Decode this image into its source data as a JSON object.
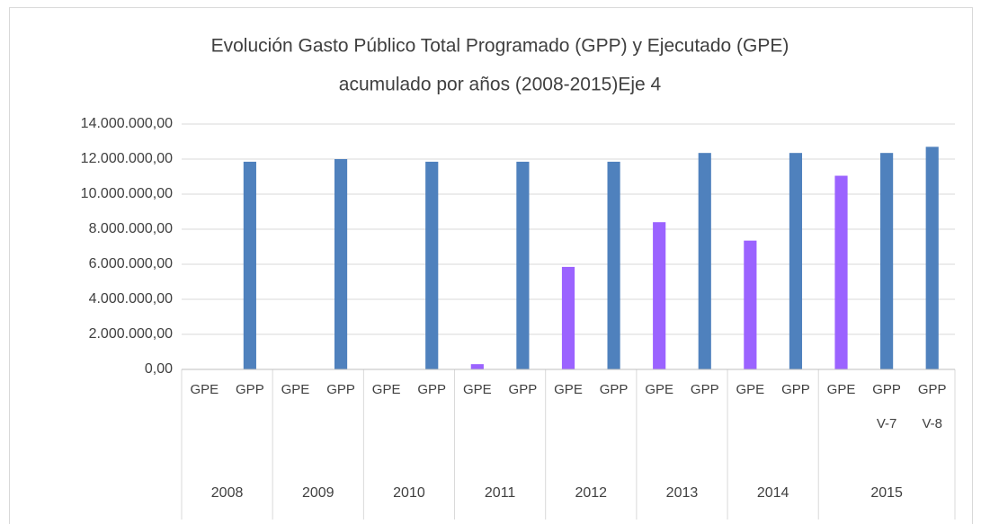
{
  "chart_data": {
    "type": "bar",
    "title": [
      "Evolución Gasto Público Total Programado (GPP) y Ejecutado (GPE)",
      "acumulado por años  (2008-2015)Eje 4"
    ],
    "groups": [
      {
        "label": "2008",
        "bars": [
          {
            "label": "GPE",
            "value": 0,
            "color": "#9b63ff"
          },
          {
            "label": "GPP",
            "value": 11850000,
            "color": "#4f81bd"
          }
        ]
      },
      {
        "label": "2009",
        "bars": [
          {
            "label": "GPE",
            "value": 0,
            "color": "#9b63ff"
          },
          {
            "label": "GPP",
            "value": 12000000,
            "color": "#4f81bd"
          }
        ]
      },
      {
        "label": "2010",
        "bars": [
          {
            "label": "GPE",
            "value": 0,
            "color": "#9b63ff"
          },
          {
            "label": "GPP",
            "value": 11850000,
            "color": "#4f81bd"
          }
        ]
      },
      {
        "label": "2011",
        "bars": [
          {
            "label": "GPE",
            "value": 300000,
            "color": "#9b63ff"
          },
          {
            "label": "GPP",
            "value": 11850000,
            "color": "#4f81bd"
          }
        ]
      },
      {
        "label": "2012",
        "bars": [
          {
            "label": "GPE",
            "value": 5850000,
            "color": "#9b63ff"
          },
          {
            "label": "GPP",
            "value": 11850000,
            "color": "#4f81bd"
          }
        ]
      },
      {
        "label": "2013",
        "bars": [
          {
            "label": "GPE",
            "value": 8400000,
            "color": "#9b63ff"
          },
          {
            "label": "GPP",
            "value": 12350000,
            "color": "#4f81bd"
          }
        ]
      },
      {
        "label": "2014",
        "bars": [
          {
            "label": "GPE",
            "value": 7350000,
            "color": "#9b63ff"
          },
          {
            "label": "GPP",
            "value": 12350000,
            "color": "#4f81bd"
          }
        ]
      },
      {
        "label": "2015",
        "bars": [
          {
            "label": "GPE",
            "value": 11050000,
            "color": "#9b63ff"
          },
          {
            "label": "GPP V-7",
            "value": 12350000,
            "color": "#4f81bd"
          },
          {
            "label": "GPP V-8",
            "value": 12700000,
            "color": "#4f81bd"
          }
        ]
      }
    ],
    "ylim": [
      0,
      14000000
    ],
    "yticks": [
      {
        "value": 0,
        "label": "0,00"
      },
      {
        "value": 2000000,
        "label": "2.000.000,00"
      },
      {
        "value": 4000000,
        "label": "4.000.000,00"
      },
      {
        "value": 6000000,
        "label": "6.000.000,00"
      },
      {
        "value": 8000000,
        "label": "8.000.000,00"
      },
      {
        "value": 10000000,
        "label": "10.000.000,00"
      },
      {
        "value": 12000000,
        "label": "12.000.000,00"
      },
      {
        "value": 14000000,
        "label": "14.000.000,00"
      }
    ],
    "grid": true
  }
}
